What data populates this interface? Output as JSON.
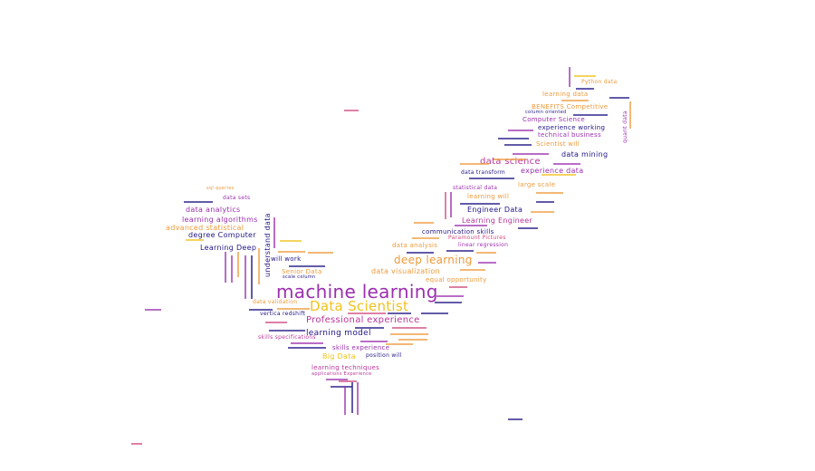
{
  "colors": {
    "purple": "#9b2fae",
    "magenta": "#b8359a",
    "navy": "#1f1585",
    "orange": "#ee9a3a",
    "gold": "#f1c21b",
    "pink": "#d04a7f",
    "white": "#ffffff"
  },
  "words": [
    {
      "text": "machine learning",
      "color": "purple"
    },
    {
      "text": "Data Scientist",
      "color": "gold"
    },
    {
      "text": "deep learning",
      "color": "orange"
    },
    {
      "text": "data science",
      "color": "magenta"
    },
    {
      "text": "Professional experience",
      "color": "magenta"
    },
    {
      "text": "learning model",
      "color": "navy"
    },
    {
      "text": "data visualization",
      "color": "orange"
    },
    {
      "text": "experience data",
      "color": "purple"
    },
    {
      "text": "Engineer Data",
      "color": "navy"
    },
    {
      "text": "Learning Engineer",
      "color": "magenta"
    },
    {
      "text": "communication skills",
      "color": "navy"
    },
    {
      "text": "data analysis",
      "color": "orange"
    },
    {
      "text": "linear regression",
      "color": "purple"
    },
    {
      "text": "Paramount Pictures",
      "color": "pink"
    },
    {
      "text": "equal opportunity",
      "color": "orange"
    },
    {
      "text": "data mining",
      "color": "navy"
    },
    {
      "text": "Scientist will",
      "color": "orange"
    },
    {
      "text": "technical business",
      "color": "purple"
    },
    {
      "text": "experience working",
      "color": "navy"
    },
    {
      "text": "Computer Science",
      "color": "purple"
    },
    {
      "text": "BENEFITS Competitive",
      "color": "orange"
    },
    {
      "text": "learning data",
      "color": "orange"
    },
    {
      "text": "large scale",
      "color": "orange"
    },
    {
      "text": "learning will",
      "color": "orange"
    },
    {
      "text": "statistical data",
      "color": "purple"
    },
    {
      "text": "data transform",
      "color": "navy"
    },
    {
      "text": "data analytics",
      "color": "purple"
    },
    {
      "text": "learning algorithms",
      "color": "purple"
    },
    {
      "text": "advanced statistical",
      "color": "orange"
    },
    {
      "text": "degree Computer",
      "color": "navy"
    },
    {
      "text": "Learning Deep",
      "color": "navy"
    },
    {
      "text": "data sets",
      "color": "purple"
    },
    {
      "text": "will work",
      "color": "navy"
    },
    {
      "text": "Senior Data",
      "color": "orange"
    },
    {
      "text": "data validation",
      "color": "orange"
    },
    {
      "text": "vertica redshift",
      "color": "navy"
    },
    {
      "text": "skills experience",
      "color": "purple"
    },
    {
      "text": "Big Data",
      "color": "gold"
    },
    {
      "text": "position will",
      "color": "navy"
    },
    {
      "text": "learning techniques",
      "color": "magenta"
    },
    {
      "text": "applications Experience",
      "color": "magenta"
    },
    {
      "text": "Python data",
      "color": "orange"
    },
    {
      "text": "column oriented",
      "color": "navy"
    },
    {
      "text": "understand data",
      "color": "navy"
    },
    {
      "text": "scale column",
      "color": "navy"
    },
    {
      "text": "sql queries",
      "color": "orange"
    },
    {
      "text": "skills specifications",
      "color": "magenta"
    },
    {
      "text": "quant data",
      "color": "purple"
    }
  ]
}
